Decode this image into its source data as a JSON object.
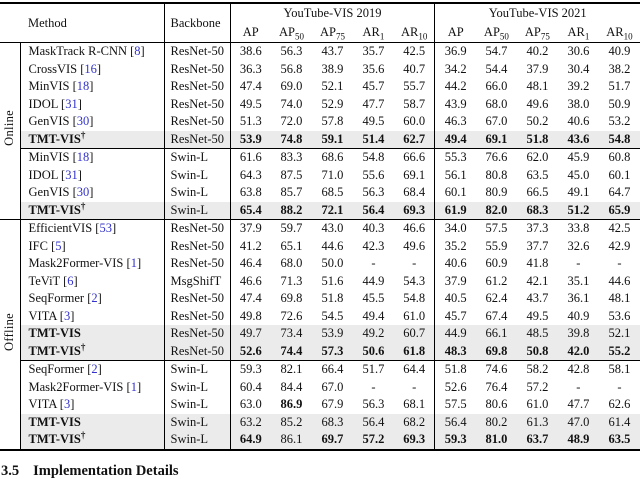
{
  "table": {
    "cite_color": "#3333cc",
    "shade_color": "#ebebeb",
    "header": {
      "method": "Method",
      "backbone": "Backbone",
      "group_2019": "YouTube-VIS 2019",
      "group_2021": "YouTube-VIS 2021",
      "metrics": [
        {
          "base": "AP",
          "sub": ""
        },
        {
          "base": "AP",
          "sub": "50"
        },
        {
          "base": "AP",
          "sub": "75"
        },
        {
          "base": "AR",
          "sub": "1"
        },
        {
          "base": "AR",
          "sub": "10"
        }
      ]
    },
    "sections": [
      {
        "label": "Online",
        "groups": [
          {
            "rows": [
              {
                "method": "MaskTrack R-CNN",
                "cite": "8",
                "dagger": false,
                "bold_method": false,
                "shaded": false,
                "backbone": "ResNet-50",
                "values": [
                  "38.6",
                  "56.3",
                  "43.7",
                  "35.7",
                  "42.5",
                  "36.9",
                  "54.7",
                  "40.2",
                  "30.6",
                  "40.9"
                ],
                "bold_idx": []
              },
              {
                "method": "CrossVIS",
                "cite": "16",
                "dagger": false,
                "bold_method": false,
                "shaded": false,
                "backbone": "ResNet-50",
                "values": [
                  "36.3",
                  "56.8",
                  "38.9",
                  "35.6",
                  "40.7",
                  "34.2",
                  "54.4",
                  "37.9",
                  "30.4",
                  "38.2"
                ],
                "bold_idx": []
              },
              {
                "method": "MinVIS",
                "cite": "18",
                "dagger": false,
                "bold_method": false,
                "shaded": false,
                "backbone": "ResNet-50",
                "values": [
                  "47.4",
                  "69.0",
                  "52.1",
                  "45.7",
                  "55.7",
                  "44.2",
                  "66.0",
                  "48.1",
                  "39.2",
                  "51.7"
                ],
                "bold_idx": []
              },
              {
                "method": "IDOL",
                "cite": "31",
                "dagger": false,
                "bold_method": false,
                "shaded": false,
                "backbone": "ResNet-50",
                "values": [
                  "49.5",
                  "74.0",
                  "52.9",
                  "47.7",
                  "58.7",
                  "43.9",
                  "68.0",
                  "49.6",
                  "38.0",
                  "50.9"
                ],
                "bold_idx": []
              },
              {
                "method": "GenVIS",
                "cite": "30",
                "dagger": false,
                "bold_method": false,
                "shaded": false,
                "backbone": "ResNet-50",
                "values": [
                  "51.3",
                  "72.0",
                  "57.8",
                  "49.5",
                  "60.0",
                  "46.3",
                  "67.0",
                  "50.2",
                  "40.6",
                  "53.2"
                ],
                "bold_idx": []
              },
              {
                "method": "TMT-VIS",
                "cite": null,
                "dagger": true,
                "bold_method": true,
                "shaded": true,
                "backbone": "ResNet-50",
                "values": [
                  "53.9",
                  "74.8",
                  "59.1",
                  "51.4",
                  "62.7",
                  "49.4",
                  "69.1",
                  "51.8",
                  "43.6",
                  "54.8"
                ],
                "bold_idx": [
                  0,
                  1,
                  2,
                  3,
                  4,
                  5,
                  6,
                  7,
                  8,
                  9
                ]
              }
            ]
          },
          {
            "rows": [
              {
                "method": "MinVIS",
                "cite": "18",
                "dagger": false,
                "bold_method": false,
                "shaded": false,
                "backbone": "Swin-L",
                "values": [
                  "61.6",
                  "83.3",
                  "68.6",
                  "54.8",
                  "66.6",
                  "55.3",
                  "76.6",
                  "62.0",
                  "45.9",
                  "60.8"
                ],
                "bold_idx": []
              },
              {
                "method": "IDOL",
                "cite": "31",
                "dagger": false,
                "bold_method": false,
                "shaded": false,
                "backbone": "Swin-L",
                "values": [
                  "64.3",
                  "87.5",
                  "71.0",
                  "55.6",
                  "69.1",
                  "56.1",
                  "80.8",
                  "63.5",
                  "45.0",
                  "60.1"
                ],
                "bold_idx": []
              },
              {
                "method": "GenVIS",
                "cite": "30",
                "dagger": false,
                "bold_method": false,
                "shaded": false,
                "backbone": "Swin-L",
                "values": [
                  "63.8",
                  "85.7",
                  "68.5",
                  "56.3",
                  "68.4",
                  "60.1",
                  "80.9",
                  "66.5",
                  "49.1",
                  "64.7"
                ],
                "bold_idx": []
              },
              {
                "method": "TMT-VIS",
                "cite": null,
                "dagger": true,
                "bold_method": true,
                "shaded": true,
                "backbone": "Swin-L",
                "values": [
                  "65.4",
                  "88.2",
                  "72.1",
                  "56.4",
                  "69.3",
                  "61.9",
                  "82.0",
                  "68.3",
                  "51.2",
                  "65.9"
                ],
                "bold_idx": [
                  0,
                  1,
                  2,
                  3,
                  4,
                  5,
                  6,
                  7,
                  8,
                  9
                ]
              }
            ]
          }
        ]
      },
      {
        "label": "Offline",
        "groups": [
          {
            "rows": [
              {
                "method": "EfficientVIS",
                "cite": "53",
                "dagger": false,
                "bold_method": false,
                "shaded": false,
                "backbone": "ResNet-50",
                "values": [
                  "37.9",
                  "59.7",
                  "43.0",
                  "40.3",
                  "46.6",
                  "34.0",
                  "57.5",
                  "37.3",
                  "33.8",
                  "42.5"
                ],
                "bold_idx": []
              },
              {
                "method": "IFC",
                "cite": "5",
                "dagger": false,
                "bold_method": false,
                "shaded": false,
                "backbone": "ResNet-50",
                "values": [
                  "41.2",
                  "65.1",
                  "44.6",
                  "42.3",
                  "49.6",
                  "35.2",
                  "55.9",
                  "37.7",
                  "32.6",
                  "42.9"
                ],
                "bold_idx": []
              },
              {
                "method": "Mask2Former-VIS",
                "cite": "1",
                "dagger": false,
                "bold_method": false,
                "shaded": false,
                "backbone": "ResNet-50",
                "values": [
                  "46.4",
                  "68.0",
                  "50.0",
                  "-",
                  "-",
                  "40.6",
                  "60.9",
                  "41.8",
                  "-",
                  "-"
                ],
                "bold_idx": []
              },
              {
                "method": "TeViT",
                "cite": "6",
                "dagger": false,
                "bold_method": false,
                "shaded": false,
                "backbone": "MsgShifT",
                "values": [
                  "46.6",
                  "71.3",
                  "51.6",
                  "44.9",
                  "54.3",
                  "37.9",
                  "61.2",
                  "42.1",
                  "35.1",
                  "44.6"
                ],
                "bold_idx": []
              },
              {
                "method": "SeqFormer",
                "cite": "2",
                "dagger": false,
                "bold_method": false,
                "shaded": false,
                "backbone": "ResNet-50",
                "values": [
                  "47.4",
                  "69.8",
                  "51.8",
                  "45.5",
                  "54.8",
                  "40.5",
                  "62.4",
                  "43.7",
                  "36.1",
                  "48.1"
                ],
                "bold_idx": []
              },
              {
                "method": "VITA",
                "cite": "3",
                "dagger": false,
                "bold_method": false,
                "shaded": false,
                "backbone": "ResNet-50",
                "values": [
                  "49.8",
                  "72.6",
                  "54.5",
                  "49.4",
                  "61.0",
                  "45.7",
                  "67.4",
                  "49.5",
                  "40.9",
                  "53.6"
                ],
                "bold_idx": []
              },
              {
                "method": "TMT-VIS",
                "cite": null,
                "dagger": false,
                "bold_method": true,
                "shaded": true,
                "backbone": "ResNet-50",
                "values": [
                  "49.7",
                  "73.4",
                  "53.9",
                  "49.2",
                  "60.7",
                  "44.9",
                  "66.1",
                  "48.5",
                  "39.8",
                  "52.1"
                ],
                "bold_idx": []
              },
              {
                "method": "TMT-VIS",
                "cite": null,
                "dagger": true,
                "bold_method": true,
                "shaded": true,
                "backbone": "ResNet-50",
                "values": [
                  "52.6",
                  "74.4",
                  "57.3",
                  "50.6",
                  "61.8",
                  "48.3",
                  "69.8",
                  "50.8",
                  "42.0",
                  "55.2"
                ],
                "bold_idx": [
                  0,
                  1,
                  2,
                  3,
                  4,
                  5,
                  6,
                  7,
                  8,
                  9
                ]
              }
            ]
          },
          {
            "rows": [
              {
                "method": "SeqFormer",
                "cite": "2",
                "dagger": false,
                "bold_method": false,
                "shaded": false,
                "backbone": "Swin-L",
                "values": [
                  "59.3",
                  "82.1",
                  "66.4",
                  "51.7",
                  "64.4",
                  "51.8",
                  "74.6",
                  "58.2",
                  "42.8",
                  "58.1"
                ],
                "bold_idx": []
              },
              {
                "method": "Mask2Former-VIS",
                "cite": "1",
                "dagger": false,
                "bold_method": false,
                "shaded": false,
                "backbone": "Swin-L",
                "values": [
                  "60.4",
                  "84.4",
                  "67.0",
                  "-",
                  "-",
                  "52.6",
                  "76.4",
                  "57.2",
                  "-",
                  "-"
                ],
                "bold_idx": []
              },
              {
                "method": "VITA",
                "cite": "3",
                "dagger": false,
                "bold_method": false,
                "shaded": false,
                "backbone": "Swin-L",
                "values": [
                  "63.0",
                  "86.9",
                  "67.9",
                  "56.3",
                  "68.1",
                  "57.5",
                  "80.6",
                  "61.0",
                  "47.7",
                  "62.6"
                ],
                "bold_idx": [
                  1
                ]
              },
              {
                "method": "TMT-VIS",
                "cite": null,
                "dagger": false,
                "bold_method": true,
                "shaded": true,
                "backbone": "Swin-L",
                "values": [
                  "63.2",
                  "85.2",
                  "68.3",
                  "56.4",
                  "68.2",
                  "56.4",
                  "80.2",
                  "61.3",
                  "47.0",
                  "61.4"
                ],
                "bold_idx": []
              },
              {
                "method": "TMT-VIS",
                "cite": null,
                "dagger": true,
                "bold_method": true,
                "shaded": true,
                "backbone": "Swin-L",
                "values": [
                  "64.9",
                  "86.1",
                  "69.7",
                  "57.2",
                  "69.3",
                  "59.3",
                  "81.0",
                  "63.7",
                  "48.9",
                  "63.5"
                ],
                "bold_idx": [
                  0,
                  2,
                  3,
                  4,
                  5,
                  6,
                  7,
                  8,
                  9
                ]
              }
            ]
          }
        ]
      }
    ]
  },
  "heading": {
    "number": "3.5",
    "title": "Implementation Details"
  }
}
